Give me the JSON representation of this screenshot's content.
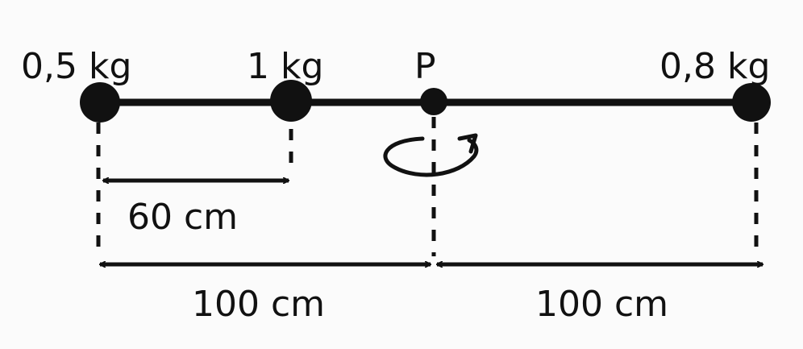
{
  "masses": {
    "left": "0,5 kg",
    "middle": "1 kg",
    "right": "0,8 kg"
  },
  "pivot_label": "P",
  "dimensions": {
    "left_to_middle": "60 cm",
    "left_to_pivot": "100 cm",
    "pivot_to_right": "100 cm"
  },
  "colors": {
    "ink": "#111111",
    "background": "#fbfbfb"
  }
}
